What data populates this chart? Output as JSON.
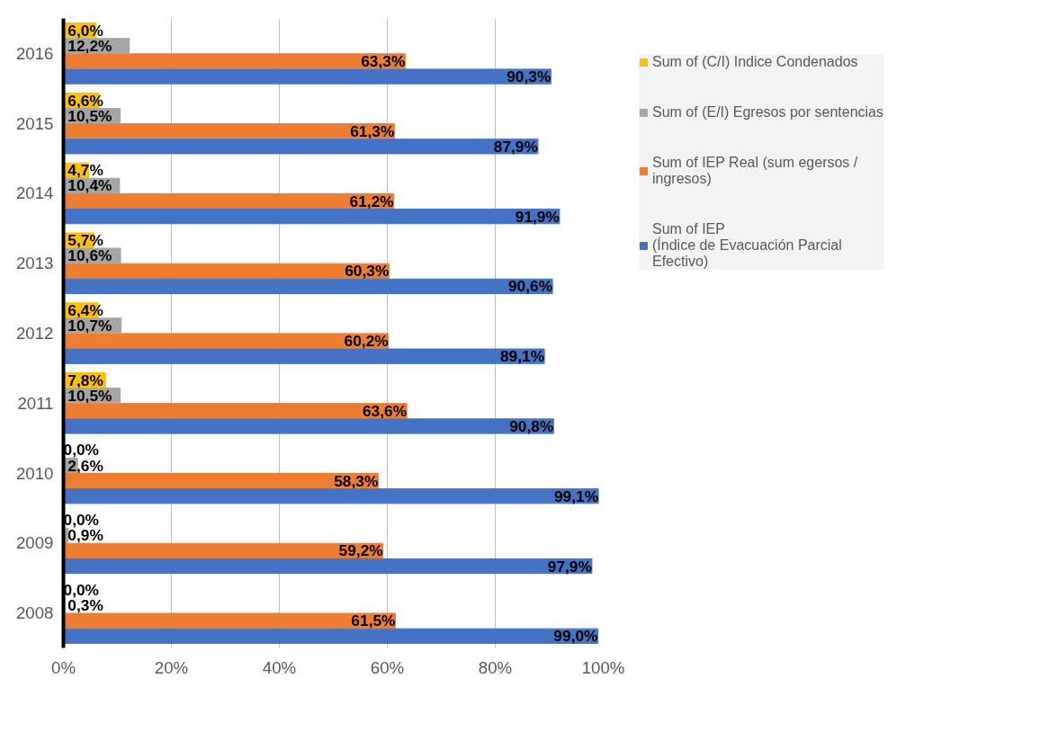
{
  "chart_data": {
    "type": "bar",
    "orientation": "horizontal",
    "categories": [
      "2016",
      "2015",
      "2014",
      "2013",
      "2012",
      "2011",
      "2010",
      "2009",
      "2008"
    ],
    "series": [
      {
        "name": "Sum of (C/I) Indice Condenados",
        "color": "#ffc000",
        "values": [
          6.0,
          6.6,
          4.7,
          5.7,
          6.4,
          7.8,
          0.0,
          0.0,
          0.0
        ],
        "value_labels": [
          "6,0%",
          "6,6%",
          "4,7%",
          "5,7%",
          "6,4%",
          "7,8%",
          "0,0%",
          "0,0%",
          "0,0%"
        ]
      },
      {
        "name": "Sum of (E/I) Egresos por sentencias",
        "color": "#a5a5a5",
        "values": [
          12.2,
          10.5,
          10.4,
          10.6,
          10.7,
          10.5,
          2.6,
          0.9,
          0.3
        ],
        "value_labels": [
          "12,2%",
          "10,5%",
          "10,4%",
          "10,6%",
          "10,7%",
          "10,5%",
          "2,6%",
          "0,9%",
          "0,3%"
        ]
      },
      {
        "name": "Sum of IEP Real (sum egersos / ingresos)",
        "color": "#ed7d31",
        "values": [
          63.3,
          61.3,
          61.2,
          60.3,
          60.2,
          63.6,
          58.3,
          59.2,
          61.5
        ],
        "value_labels": [
          "63,3%",
          "61,3%",
          "61,2%",
          "60,3%",
          "60,2%",
          "63,6%",
          "58,3%",
          "59,2%",
          "61,5%"
        ]
      },
      {
        "name": "Sum of IEP\n(Índice de Evacuación Parcial Efectivo)",
        "color": "#4472c4",
        "values": [
          90.3,
          87.9,
          91.9,
          90.6,
          89.1,
          90.8,
          99.1,
          97.9,
          99.0
        ],
        "value_labels": [
          "90,3%",
          "87,9%",
          "91,9%",
          "90,6%",
          "89,1%",
          "90,8%",
          "99,1%",
          "97,9%",
          "99,0%"
        ]
      }
    ],
    "xlim": [
      0,
      100
    ],
    "xticks": [
      {
        "value": 0,
        "label": "0%"
      },
      {
        "value": 20,
        "label": "20%"
      },
      {
        "value": 40,
        "label": "40%"
      },
      {
        "value": 60,
        "label": "60%"
      },
      {
        "value": 80,
        "label": "80%"
      },
      {
        "value": 100,
        "label": "100%"
      }
    ],
    "grid": "x",
    "legend": "right"
  }
}
